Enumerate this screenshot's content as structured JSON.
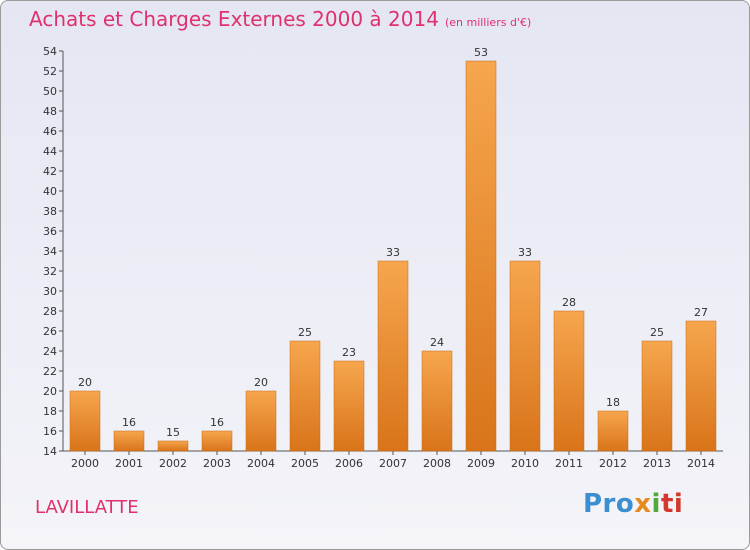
{
  "header": {
    "title": "Achats et Charges Externes 2000 à 2014",
    "subtitle": "(en milliers d'€)"
  },
  "footer": {
    "commune": "LAVILLATTE",
    "logo": "Proxiti"
  },
  "colors": {
    "bar_top": "#f6a64e",
    "bar_bottom": "#d9741a",
    "title": "#e0306e"
  },
  "chart_data": {
    "type": "bar",
    "title": "Achats et Charges Externes 2000 à 2014",
    "subtitle": "(en milliers d'€)",
    "xlabel": "",
    "ylabel": "",
    "categories": [
      "2000",
      "2001",
      "2002",
      "2003",
      "2004",
      "2005",
      "2006",
      "2007",
      "2008",
      "2009",
      "2010",
      "2011",
      "2012",
      "2013",
      "2014"
    ],
    "values": [
      20,
      16,
      15,
      16,
      20,
      25,
      23,
      33,
      24,
      53,
      33,
      28,
      18,
      25,
      27
    ],
    "ylim": [
      14,
      54
    ],
    "yticks": [
      14,
      16,
      18,
      20,
      22,
      24,
      26,
      28,
      30,
      32,
      34,
      36,
      38,
      40,
      42,
      44,
      46,
      48,
      50,
      52,
      54
    ],
    "grid": false,
    "legend": "none"
  }
}
